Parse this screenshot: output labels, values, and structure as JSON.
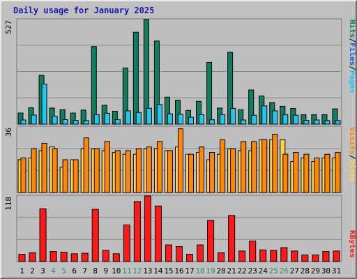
{
  "title": "Daily usage for January 2025",
  "colors": {
    "background": "#c0c0c0",
    "panel": "#bebebe",
    "grid": "#8c8c8c",
    "title": "#1a1aa6",
    "hits": "#0f7f62",
    "files": "#1fc8f0",
    "pages": "#1fc8f0",
    "visits": "#ff8800",
    "sites": "#ffd24a",
    "kbytes": "#ff1a1a",
    "weekend_day": "#2f8f6f",
    "weekday": "#000000"
  },
  "chart_data": [
    {
      "type": "bar",
      "panel": "hits-files-pages",
      "ymax_label": "527",
      "ylim": [
        0,
        527
      ],
      "legend": [
        {
          "name": "Hits",
          "label": "Hits",
          "color": "#0f7f62"
        },
        {
          "name": "Files",
          "label": "Files",
          "color": "#1fc8f0"
        },
        {
          "name": "Pages",
          "label": "Pages",
          "color": "#1fc8f0"
        }
      ],
      "series": [
        {
          "name": "Hits",
          "values": [
            56,
            83,
            246,
            81,
            73,
            56,
            71,
            391,
            95,
            65,
            283,
            463,
            527,
            419,
            136,
            121,
            69,
            115,
            311,
            81,
            362,
            73,
            172,
            142,
            109,
            90,
            79,
            48,
            48,
            48,
            77
          ]
        },
        {
          "name": "Files",
          "values": [
            21,
            46,
            202,
            40,
            23,
            19,
            18,
            48,
            55,
            23,
            67,
            59,
            80,
            99,
            52,
            50,
            35,
            48,
            22,
            48,
            79,
            21,
            45,
            92,
            67,
            48,
            45,
            19,
            21,
            18,
            18
          ]
        }
      ]
    },
    {
      "type": "bar",
      "panel": "visits-sites",
      "ymax_label": "36",
      "ylim": [
        0,
        36
      ],
      "legend": [
        {
          "name": "Visits",
          "label": "Visits",
          "color": "#ff8800"
        },
        {
          "name": "Sites",
          "label": "Sites",
          "color": "#ffd24a"
        }
      ],
      "series": [
        {
          "name": "Sites",
          "values": [
            18,
            19,
            23,
            25,
            14,
            18,
            24,
            24,
            23,
            22,
            21,
            21,
            24,
            24,
            23,
            25,
            21,
            22,
            18,
            21,
            24,
            23,
            23,
            29,
            29,
            29,
            17,
            19,
            17,
            19,
            19
          ]
        },
        {
          "name": "Visits",
          "values": [
            19,
            24,
            27,
            24,
            18,
            18,
            30,
            24,
            28,
            23,
            23,
            24,
            25,
            28,
            23,
            35,
            21,
            25,
            22,
            29,
            24,
            28,
            28,
            29,
            32,
            21,
            22,
            21,
            19,
            21,
            22
          ]
        }
      ]
    },
    {
      "type": "bar",
      "panel": "kbytes",
      "ymax_label": "118",
      "ylim": [
        0,
        118
      ],
      "legend": [
        {
          "name": "KBytes",
          "label": "KBytes",
          "color": "#ff1a1a"
        }
      ],
      "series": [
        {
          "name": "KBytes",
          "values": [
            13,
            16,
            95,
            18,
            17,
            14,
            15,
            94,
            20,
            14,
            66,
            108,
            118,
            100,
            30,
            27,
            13,
            30,
            74,
            16,
            83,
            19,
            37,
            21,
            20,
            25,
            19,
            12,
            12,
            18,
            19
          ]
        }
      ]
    }
  ],
  "x_labels": [
    "1",
    "2",
    "3",
    "4",
    "5",
    "6",
    "7",
    "8",
    "9",
    "10",
    "11",
    "12",
    "13",
    "14",
    "15",
    "16",
    "17",
    "18",
    "19",
    "20",
    "21",
    "22",
    "23",
    "24",
    "25",
    "26",
    "27",
    "28",
    "29",
    "30",
    "31"
  ],
  "weekend_days": [
    4,
    5,
    11,
    12,
    18,
    19,
    25,
    26
  ]
}
